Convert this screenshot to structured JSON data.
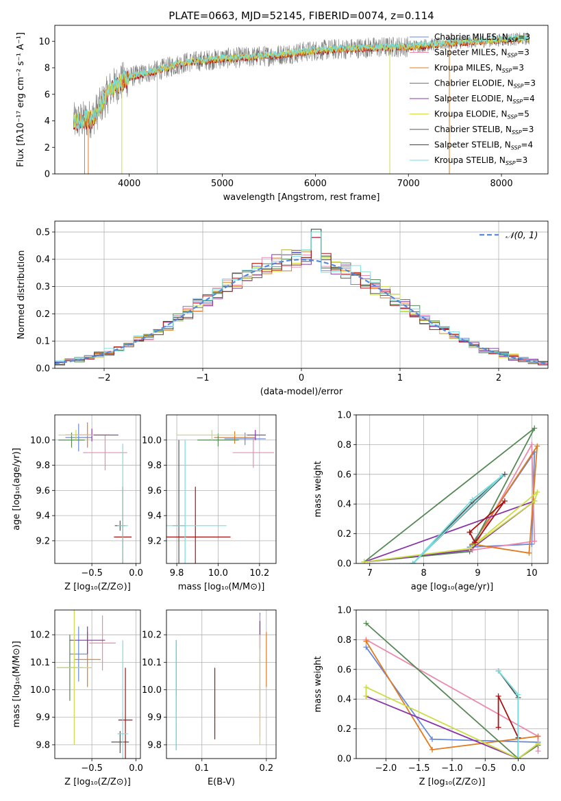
{
  "colors": {
    "Chabrier MILES": "#6688dd",
    "Salpeter MILES": "#ee88aa",
    "Kroupa MILES": "#e07b1f",
    "Chabrier ELODIE": "#558855",
    "Salpeter ELODIE": "#8833aa",
    "Kroupa ELODIE": "#ccdd44",
    "Chabrier STELIB": "#555555",
    "Salpeter STELIB": "#aa1111",
    "Kroupa STELIB": "#77dddd",
    "gaussian": "#5588dd"
  },
  "chart_data": [
    {
      "id": "spectrum",
      "type": "line",
      "title": "PLATE=0663, MJD=52145, FIBERID=0074, z=0.114",
      "xlabel": "wavelength [Angstrom, rest frame]",
      "ylabel": "Flux [fλ10⁻¹⁷ erg cm⁻² s⁻¹ A⁻¹]",
      "xlim": [
        3200,
        8500
      ],
      "ylim": [
        0,
        11.2
      ],
      "xticks": [
        4000,
        5000,
        6000,
        7000,
        8000
      ],
      "yticks": [
        0,
        2,
        4,
        6,
        8,
        10
      ],
      "grid": false,
      "legend_position": "lower-right",
      "legend": [
        {
          "model": "Chabrier MILES",
          "label": "Chabrier MILES, N",
          "sub": "SSP",
          "n": "=3"
        },
        {
          "model": "Salpeter MILES",
          "label": "Salpeter MILES, N",
          "sub": "SSP",
          "n": "=3"
        },
        {
          "model": "Kroupa MILES",
          "label": "Kroupa MILES, N",
          "sub": "SSP",
          "n": "=3"
        },
        {
          "model": "Chabrier ELODIE",
          "label": "Chabrier ELODIE, N",
          "sub": "SSP",
          "n": "=3"
        },
        {
          "model": "Salpeter ELODIE",
          "label": "Salpeter ELODIE, N",
          "sub": "SSP",
          "n": "=4"
        },
        {
          "model": "Kroupa ELODIE",
          "label": "Kroupa ELODIE, N",
          "sub": "SSP",
          "n": "=5"
        },
        {
          "model": "Chabrier STELIB",
          "label": "Chabrier STELIB, N",
          "sub": "SSP",
          "n": "=3"
        },
        {
          "model": "Salpeter STELIB",
          "label": "Salpeter STELIB, N",
          "sub": "SSP",
          "n": "=4"
        },
        {
          "model": "Kroupa STELIB",
          "label": "Kroupa STELIB, N",
          "sub": "SSP",
          "n": "=3"
        }
      ],
      "continuum": {
        "x": [
          3400,
          3600,
          3700,
          3800,
          4000,
          4300,
          4600,
          5000,
          5500,
          6000,
          6500,
          7000,
          7500,
          8000,
          8300
        ],
        "y": [
          3.9,
          4.2,
          5.2,
          6.4,
          7.3,
          7.8,
          8.4,
          8.7,
          8.9,
          9.3,
          9.5,
          9.6,
          9.9,
          10.1,
          10.2
        ]
      },
      "spikes": [
        {
          "model": "Kroupa MILES",
          "x": 3520
        },
        {
          "model": "Kroupa MILES",
          "x": 3560
        },
        {
          "model": "Kroupa ELODIE",
          "x": 3920
        },
        {
          "model": "Kroupa STELIB",
          "x": 4300
        },
        {
          "model": "Kroupa ELODIE",
          "x": 6800
        },
        {
          "model": "Kroupa MILES",
          "x": 7440
        }
      ]
    },
    {
      "id": "residuals",
      "type": "histogram",
      "xlabel": "(data-model)/error",
      "ylabel": "Normed distribution",
      "xlim": [
        -2.5,
        2.5
      ],
      "ylim": [
        0,
        0.54
      ],
      "xticks": [
        -2,
        -1,
        0,
        1,
        2
      ],
      "yticks": [
        0.0,
        0.1,
        0.2,
        0.3,
        0.4,
        0.5
      ],
      "grid": true,
      "bin_width": 0.1,
      "legend_position": "top-right",
      "gaussian_label": "𝒩(0, 1)",
      "peak_bin": {
        "x": 0.15,
        "values": [
          0.51,
          0.48,
          0.5
        ]
      }
    },
    {
      "id": "age-metallicity",
      "type": "errorbar",
      "xlabel": "Z [log₁₀(Z/Z⊙)]",
      "ylabel": "age  [log₁₀(age/yr)]",
      "xlim": [
        -0.92,
        0.05
      ],
      "ylim": [
        9.02,
        10.2
      ],
      "xticks": [
        -0.5,
        0.0
      ],
      "yticks": [
        9.2,
        9.4,
        9.6,
        9.8,
        10.0
      ],
      "xtick_labels": [
        "−0.5",
        "0.0"
      ],
      "ytick_labels": [
        "9.2",
        "9.4",
        "9.6",
        "9.8",
        "10.0"
      ],
      "grid": true,
      "points": [
        {
          "model": "Chabrier MILES",
          "x": -0.65,
          "xerr": 0.15,
          "y": 10.02,
          "yerr": 0.11
        },
        {
          "model": "Salpeter MILES",
          "x": -0.35,
          "xerr": 0.25,
          "y": 9.9,
          "yerr": 0.14
        },
        {
          "model": "Kroupa MILES",
          "x": -0.55,
          "xerr": 0.25,
          "y": 10.04,
          "yerr": 0.1
        },
        {
          "model": "Chabrier ELODIE",
          "x": -0.73,
          "xerr": 0.15,
          "y": 10.0,
          "yerr": 0.06
        },
        {
          "model": "Salpeter ELODIE",
          "x": -0.5,
          "xerr": 0.3,
          "y": 10.04,
          "yerr": 0.05
        },
        {
          "model": "Kroupa ELODIE",
          "x": -0.68,
          "xerr": 0.2,
          "y": 10.04,
          "yerr": 0.04
        },
        {
          "model": "Chabrier STELIB",
          "x": -0.18,
          "xerr": 0.06,
          "y": 9.32,
          "yerr": 0.04
        },
        {
          "model": "Salpeter STELIB",
          "x": -0.15,
          "xerr": 0.1,
          "y": 9.23,
          "yerr": 0.4
        },
        {
          "model": "Kroupa STELIB",
          "x": -0.15,
          "xerr": 0.06,
          "y": 9.32,
          "yerr": 0.65
        }
      ]
    },
    {
      "id": "age-mass",
      "type": "errorbar",
      "xlabel": "mass [log₁₀(M/M⊙)]",
      "ylabel": "",
      "xlim": [
        9.75,
        10.28
      ],
      "ylim": [
        9.02,
        10.2
      ],
      "xticks": [
        9.8,
        10.0,
        10.2
      ],
      "yticks": [
        9.2,
        9.4,
        9.6,
        9.8,
        10.0
      ],
      "xtick_labels": [
        "9.8",
        "10.0",
        "10.2"
      ],
      "ytick_labels": [
        "9.2",
        "9.4",
        "9.6",
        "9.8",
        "10.0"
      ],
      "grid": true,
      "points": [
        {
          "model": "Chabrier MILES",
          "x": 10.13,
          "xerr": 0.1,
          "y": 10.01,
          "yerr": 0.05
        },
        {
          "model": "Salpeter MILES",
          "x": 10.17,
          "xerr": 0.1,
          "y": 9.9,
          "yerr": 0.12
        },
        {
          "model": "Kroupa MILES",
          "x": 10.08,
          "xerr": 0.1,
          "y": 10.02,
          "yerr": 0.05
        },
        {
          "model": "Chabrier ELODIE",
          "x": 10.0,
          "xerr": 0.1,
          "y": 10.0,
          "yerr": 0.05
        },
        {
          "model": "Salpeter ELODIE",
          "x": 10.18,
          "xerr": 0.05,
          "y": 10.04,
          "yerr": 0.04
        },
        {
          "model": "Kroupa ELODIE",
          "x": 9.97,
          "xerr": 0.17,
          "y": 10.04,
          "yerr": 0.04
        },
        {
          "model": "Chabrier STELIB",
          "x": 9.81,
          "xerr": 0.03,
          "y": 9.32,
          "yerr": 0.68
        },
        {
          "model": "Salpeter STELIB",
          "x": 9.89,
          "xerr": 0.17,
          "y": 9.23,
          "yerr": 0.4
        },
        {
          "model": "Kroupa STELIB",
          "x": 9.84,
          "xerr": 0.2,
          "y": 9.32,
          "yerr": 0.68
        }
      ]
    },
    {
      "id": "weight-age",
      "type": "line",
      "xlabel": "age  [log₁₀(age/yr)]",
      "ylabel": "mass weight",
      "xlim": [
        6.75,
        10.3
      ],
      "ylim": [
        0,
        1.0
      ],
      "xticks": [
        7,
        8,
        9,
        10
      ],
      "yticks": [
        0.0,
        0.2,
        0.4,
        0.6,
        0.8,
        1.0
      ],
      "xtick_labels": [
        "7",
        "8",
        "9",
        "10"
      ],
      "ytick_labels": [
        "0.0",
        "0.2",
        "0.4",
        "0.6",
        "0.8",
        "1.0"
      ],
      "grid": true,
      "series": [
        {
          "model": "Chabrier MILES",
          "x": [
            8.85,
            10.0,
            10.05,
            8.85
          ],
          "y": [
            0.11,
            0.13,
            0.75,
            0.11
          ]
        },
        {
          "model": "Salpeter MILES",
          "x": [
            8.9,
            10.0,
            10.05,
            8.9
          ],
          "y": [
            0.09,
            0.8,
            0.15,
            0.09
          ]
        },
        {
          "model": "Kroupa MILES",
          "x": [
            8.9,
            9.95,
            10.1,
            8.9
          ],
          "y": [
            0.13,
            0.07,
            0.79,
            0.13
          ]
        },
        {
          "model": "Chabrier ELODIE",
          "x": [
            6.9,
            8.85,
            10.05,
            6.9
          ],
          "y": [
            0.01,
            0.08,
            0.91,
            0.01
          ]
        },
        {
          "model": "Salpeter ELODIE",
          "x": [
            6.9,
            8.85,
            10.05,
            6.9
          ],
          "y": [
            0.01,
            0.09,
            0.42,
            0.01
          ]
        },
        {
          "model": "Kroupa ELODIE",
          "x": [
            6.9,
            8.85,
            10.05,
            10.1,
            8.85,
            6.9
          ],
          "y": [
            0.01,
            0.1,
            0.42,
            0.48,
            0.1,
            0.01
          ]
        },
        {
          "model": "Chabrier STELIB",
          "x": [
            7.8,
            8.9,
            9.5,
            7.8
          ],
          "y": [
            0.0,
            0.41,
            0.6,
            0.0
          ]
        },
        {
          "model": "Salpeter STELIB",
          "x": [
            8.85,
            8.95,
            9.5,
            8.85
          ],
          "y": [
            0.21,
            0.14,
            0.42,
            0.21
          ]
        },
        {
          "model": "Kroupa STELIB",
          "x": [
            7.8,
            8.9,
            9.45,
            7.8
          ],
          "y": [
            0.0,
            0.43,
            0.59,
            0.0
          ]
        }
      ]
    },
    {
      "id": "mass-metallicity",
      "type": "errorbar",
      "xlabel": "Z [log₁₀(Z/Z⊙)]",
      "ylabel": "mass [log₁₀(M/M⊙)]",
      "xlim": [
        -0.92,
        0.05
      ],
      "ylim": [
        9.75,
        10.29
      ],
      "xticks": [
        -0.5,
        0.0
      ],
      "yticks": [
        9.8,
        9.9,
        10.0,
        10.1,
        10.2
      ],
      "xtick_labels": [
        "−0.5",
        "0.0"
      ],
      "ytick_labels": [
        "9.8",
        "9.9",
        "10.0",
        "10.1",
        "10.2"
      ],
      "grid": true,
      "points": [
        {
          "model": "Chabrier MILES",
          "x": -0.65,
          "xerr": 0.1,
          "y": 10.13,
          "yerr": 0.1
        },
        {
          "model": "Salpeter MILES",
          "x": -0.38,
          "xerr": 0.15,
          "y": 10.17,
          "yerr": 0.1
        },
        {
          "model": "Kroupa MILES",
          "x": -0.55,
          "xerr": 0.15,
          "y": 10.11,
          "yerr": 0.1
        },
        {
          "model": "Chabrier ELODIE",
          "x": -0.75,
          "xerr": 0.15,
          "y": 10.08,
          "yerr": 0.12
        },
        {
          "model": "Salpeter ELODIE",
          "x": -0.55,
          "xerr": 0.2,
          "y": 10.18,
          "yerr": 0.05
        },
        {
          "model": "Kroupa ELODIE",
          "x": -0.7,
          "xerr": 0.2,
          "y": 10.08,
          "yerr": 0.28
        },
        {
          "model": "Chabrier STELIB",
          "x": -0.18,
          "xerr": 0.1,
          "y": 9.81,
          "yerr": 0.04
        },
        {
          "model": "Salpeter STELIB",
          "x": -0.12,
          "xerr": 0.08,
          "y": 9.89,
          "yerr": 0.19
        },
        {
          "model": "Kroupa STELIB",
          "x": -0.15,
          "xerr": 0.06,
          "y": 9.84,
          "yerr": 0.34
        }
      ]
    },
    {
      "id": "mass-extinction",
      "type": "errorbar",
      "xlabel": "E(B-V)",
      "ylabel": "",
      "xlim": [
        0.045,
        0.215
      ],
      "ylim": [
        9.75,
        10.29
      ],
      "xticks": [
        0.1,
        0.2
      ],
      "yticks": [
        9.8,
        9.9,
        10.0,
        10.1,
        10.2
      ],
      "xtick_labels": [
        "0.1",
        "0.2"
      ],
      "ytick_labels": [
        "9.8",
        "9.9",
        "10.0",
        "10.1",
        "10.2"
      ],
      "grid": true,
      "points": [
        {
          "model": "Chabrier MILES",
          "x": 0.19,
          "xerr": 0.0,
          "y": 10.1,
          "yerr": 0.18
        },
        {
          "model": "Salpeter MILES",
          "x": 0.19,
          "xerr": 0.0,
          "y": 10.05,
          "yerr": 0.22
        },
        {
          "model": "Kroupa MILES",
          "x": 0.2,
          "xerr": 0.0,
          "y": 10.11,
          "yerr": 0.1
        },
        {
          "model": "Chabrier ELODIE",
          "x": 0.06,
          "xerr": 0.0,
          "y": 10.08,
          "yerr": 0.1
        },
        {
          "model": "Salpeter ELODIE",
          "x": 0.19,
          "xerr": 0.0,
          "y": 10.2,
          "yerr": 0.05
        },
        {
          "model": "Kroupa ELODIE",
          "x": 0.19,
          "xerr": 0.0,
          "y": 10.0,
          "yerr": 0.2
        },
        {
          "model": "Chabrier STELIB",
          "x": 0.06,
          "xerr": 0.0,
          "y": 9.98,
          "yerr": 0.2
        },
        {
          "model": "Salpeter STELIB",
          "x": 0.12,
          "xerr": 0.0,
          "y": 9.95,
          "yerr": 0.13
        },
        {
          "model": "Kroupa STELIB",
          "x": 0.06,
          "xerr": 0.0,
          "y": 9.98,
          "yerr": 0.2
        }
      ]
    },
    {
      "id": "weight-metallicity",
      "type": "line",
      "xlabel": "Z [log₁₀(Z/Z⊙)]",
      "ylabel": "mass weight",
      "xlim": [
        -2.45,
        0.45
      ],
      "ylim": [
        0,
        1.0
      ],
      "xticks": [
        -2.0,
        -1.5,
        -1.0,
        -0.5,
        0.0
      ],
      "yticks": [
        0.0,
        0.2,
        0.4,
        0.6,
        0.8,
        1.0
      ],
      "xtick_labels": [
        "−2.0",
        "−1.5",
        "−1.0",
        "−0.5",
        "0.0"
      ],
      "ytick_labels": [
        "0.0",
        "0.2",
        "0.4",
        "0.6",
        "0.8",
        "1.0"
      ],
      "grid": true,
      "series": [
        {
          "model": "Chabrier MILES",
          "x": [
            -2.3,
            -1.3,
            0.3
          ],
          "y": [
            0.75,
            0.13,
            0.11
          ]
        },
        {
          "model": "Salpeter MILES",
          "x": [
            -2.3,
            0.3,
            0.3
          ],
          "y": [
            0.8,
            0.15,
            0.05
          ]
        },
        {
          "model": "Kroupa MILES",
          "x": [
            -2.3,
            -1.3,
            0.3
          ],
          "y": [
            0.79,
            0.06,
            0.15
          ]
        },
        {
          "model": "Chabrier ELODIE",
          "x": [
            -2.3,
            0.0,
            0.3
          ],
          "y": [
            0.91,
            0.0,
            0.09
          ]
        },
        {
          "model": "Salpeter ELODIE",
          "x": [
            -2.3,
            0.0,
            0.3
          ],
          "y": [
            0.42,
            0.0,
            0.1
          ]
        },
        {
          "model": "Kroupa ELODIE",
          "x": [
            -2.3,
            -2.3,
            0.0,
            0.3
          ],
          "y": [
            0.42,
            0.48,
            0.0,
            0.1
          ]
        },
        {
          "model": "Chabrier STELIB",
          "x": [
            -0.3,
            0.0,
            0.0
          ],
          "y": [
            0.59,
            0.41,
            0.0
          ]
        },
        {
          "model": "Salpeter STELIB",
          "x": [
            -0.3,
            -0.3,
            0.0,
            0.0
          ],
          "y": [
            0.21,
            0.42,
            0.14,
            0.0
          ]
        },
        {
          "model": "Kroupa STELIB",
          "x": [
            -0.3,
            0.0,
            0.0
          ],
          "y": [
            0.59,
            0.43,
            0.0
          ]
        }
      ]
    }
  ]
}
